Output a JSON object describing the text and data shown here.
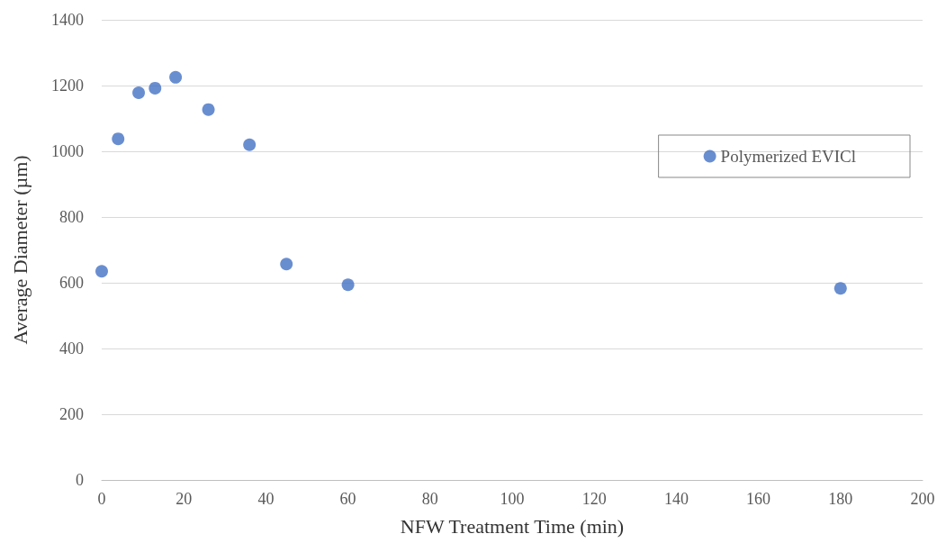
{
  "chart_data": {
    "type": "scatter",
    "xlabel": "NFW Treatment Time (min)",
    "ylabel": "Average Diameter (µm)",
    "x": [
      0,
      4,
      9,
      13,
      18,
      26,
      36,
      45,
      60,
      180
    ],
    "series": [
      {
        "name": "Polymerized EVICl",
        "color": "#4472c4",
        "values": [
          635,
          1038,
          1178,
          1192,
          1225,
          1127,
          1020,
          657,
          594,
          583
        ]
      }
    ],
    "xlim": [
      0,
      200
    ],
    "xticks": [
      0,
      20,
      40,
      60,
      80,
      100,
      120,
      140,
      160,
      180,
      200
    ],
    "ylim": [
      0,
      1400
    ],
    "yticks": [
      0,
      200,
      400,
      600,
      800,
      1000,
      1200,
      1400
    ],
    "grid": "y",
    "legend": "right",
    "marker": "circle"
  }
}
